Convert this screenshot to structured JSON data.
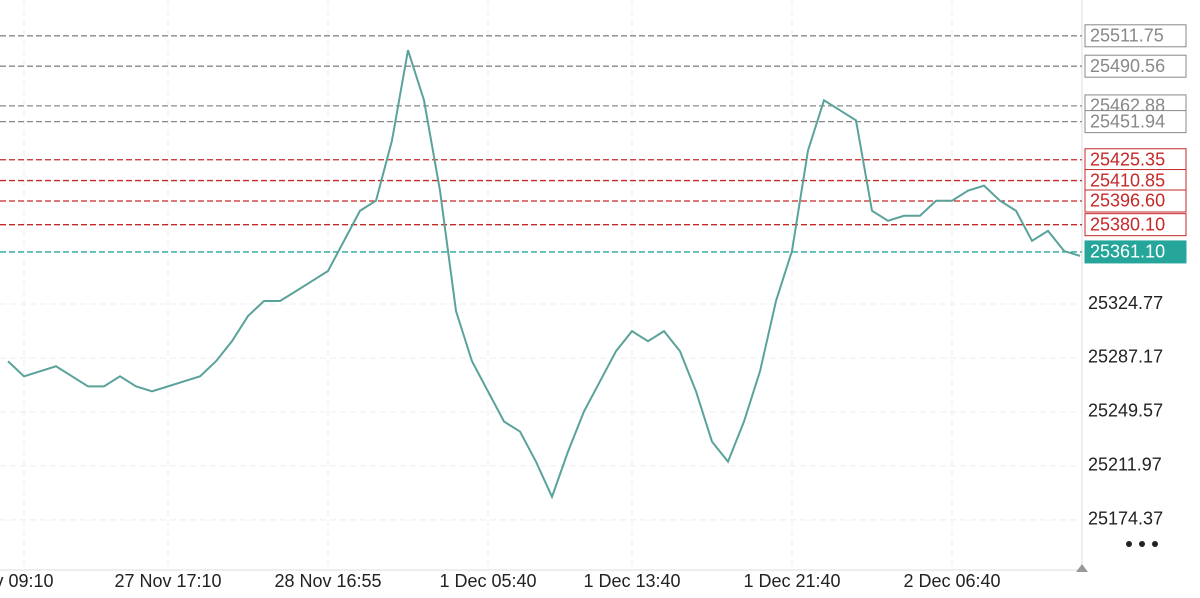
{
  "chart_data": {
    "type": "line",
    "color": "#5aa39a",
    "categories": [
      null,
      "v 09:10",
      null,
      null,
      null,
      null,
      null,
      null,
      null,
      null,
      "27 Nov 17:10",
      null,
      null,
      null,
      null,
      null,
      null,
      null,
      null,
      null,
      "28 Nov 16:55",
      null,
      null,
      null,
      null,
      null,
      null,
      null,
      null,
      null,
      "1 Dec 05:40",
      null,
      null,
      null,
      null,
      null,
      null,
      null,
      null,
      "1 Dec 13:40",
      null,
      null,
      null,
      null,
      null,
      null,
      null,
      null,
      null,
      "1 Dec 21:40",
      null,
      null,
      null,
      null,
      null,
      null,
      null,
      null,
      null,
      "2 Dec 06:40",
      null,
      null,
      null,
      null,
      null,
      null,
      null,
      null
    ],
    "values": [
      25284.9,
      25274.4,
      25277.9,
      25281.4,
      25274.4,
      25267.4,
      25267.4,
      25274.4,
      25267.4,
      25263.9,
      25267.4,
      25270.9,
      25274.4,
      25284.9,
      25298.9,
      25316.4,
      25326.9,
      25326.9,
      25333.8,
      25340.8,
      25347.8,
      25368.8,
      25389.8,
      25396.8,
      25438.8,
      25501.7,
      25466.8,
      25403.8,
      25319.9,
      25284.9,
      25263.9,
      25242.9,
      25235.9,
      25214.9,
      25190.4,
      25221.9,
      25249.9,
      25270.9,
      25291.9,
      25305.9,
      25298.9,
      25305.9,
      25291.9,
      25263.9,
      25228.9,
      25214.9,
      25242.9,
      25277.9,
      25326.9,
      25361.8,
      25431.8,
      25466.8,
      25459.8,
      25452.8,
      25389.8,
      25382.8,
      25386.3,
      25386.3,
      25396.8,
      25396.8,
      25403.8,
      25407.3,
      25396.8,
      25389.8,
      25368.8,
      25375.8,
      25361.8,
      25358.3
    ],
    "ylim": [
      25139.4,
      25536.7
    ],
    "yticks": [
      25324.77,
      25287.17,
      25249.57,
      25211.97,
      25174.37
    ],
    "grid": true,
    "levels": [
      {
        "value": 25511.75,
        "label": "25511.75",
        "color": "#888888"
      },
      {
        "value": 25490.56,
        "label": "25490.56",
        "color": "#888888"
      },
      {
        "value": 25462.88,
        "label": "25462.88",
        "color": "#888888"
      },
      {
        "value": 25451.94,
        "label": "25451.94",
        "color": "#888888"
      },
      {
        "value": 25425.35,
        "label": "25425.35",
        "color": "#c62828"
      },
      {
        "value": 25410.85,
        "label": "25410.85",
        "color": "#c62828"
      },
      {
        "value": 25396.6,
        "label": "25396.60",
        "color": "#c62828"
      },
      {
        "value": 25380.1,
        "label": "25380.10",
        "color": "#c62828"
      }
    ],
    "last_price": {
      "value": 25361.1,
      "label": "25361.10",
      "color": "#26a69a"
    }
  }
}
